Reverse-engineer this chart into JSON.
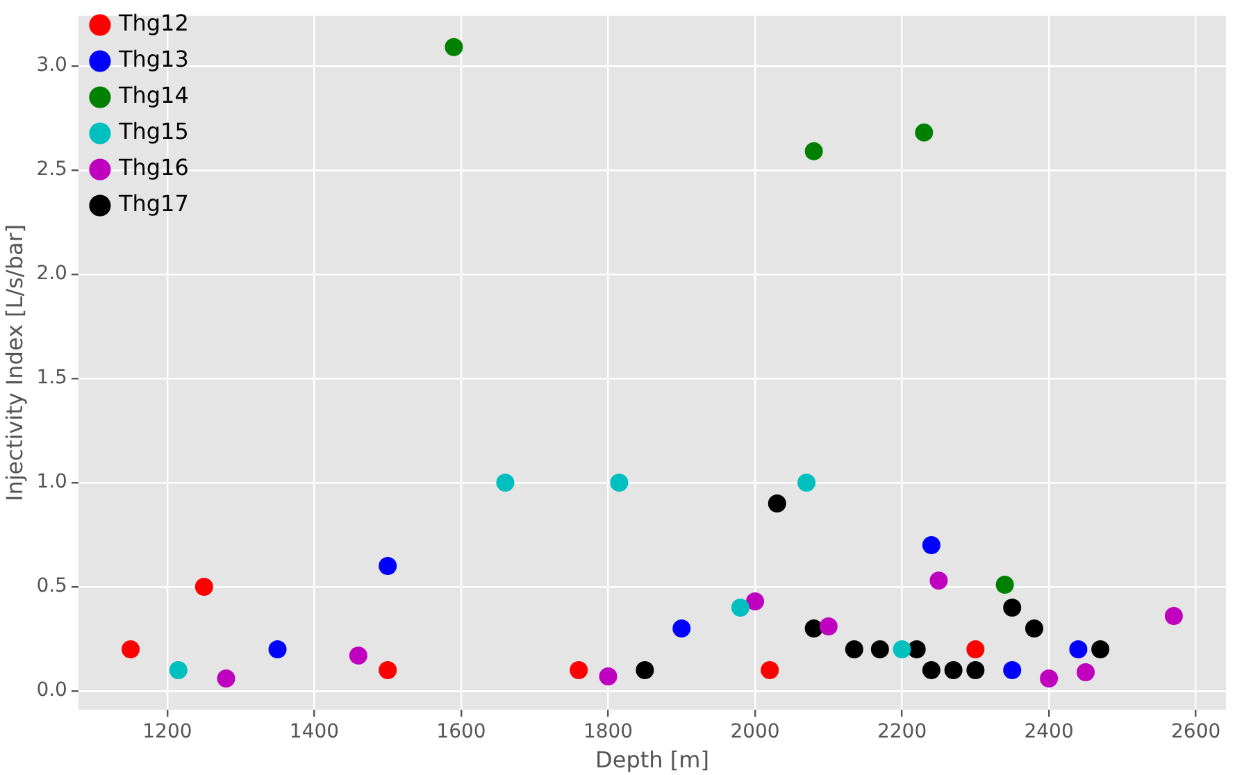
{
  "chart_data": {
    "type": "scatter",
    "xlabel": "Depth [m]",
    "ylabel": "Injectivity Index [L/s/bar]",
    "xlim": [
      1079,
      2641
    ],
    "xticks": [
      1200,
      1400,
      1600,
      1800,
      2000,
      2200,
      2400,
      2600
    ],
    "ylim": [
      -0.09,
      3.24
    ],
    "yticks": [
      {
        "value": 0,
        "label": "0.0"
      },
      0.5,
      {
        "value": 1,
        "label": "1.0"
      },
      1.5,
      {
        "value": 2,
        "label": "2.0"
      },
      2.5,
      {
        "value": 3,
        "label": "3.0"
      }
    ],
    "grid": true,
    "legend": "top left",
    "marker": "circle",
    "series": [
      {
        "name": "Thg12",
        "color": "#ff0000",
        "x": [
          1150,
          1250,
          1500,
          1760,
          2020,
          2300
        ],
        "values": [
          0.2,
          0.5,
          0.1,
          0.1,
          0.1,
          0.2
        ]
      },
      {
        "name": "Thg13",
        "color": "#0000ff",
        "x": [
          1350,
          1500,
          1900,
          2240,
          2350,
          2440
        ],
        "values": [
          0.2,
          0.6,
          0.3,
          0.7,
          0.1,
          0.2
        ]
      },
      {
        "name": "Thg14",
        "color": "#008000",
        "x": [
          1590,
          2080,
          2230,
          2340
        ],
        "values": [
          3.09,
          2.59,
          2.68,
          0.51
        ]
      },
      {
        "name": "Thg15",
        "color": "#00bfbf",
        "x": [
          1215,
          1660,
          1815,
          1980,
          2070,
          2200
        ],
        "values": [
          0.1,
          1.0,
          1.0,
          0.4,
          1.0,
          0.2
        ]
      },
      {
        "name": "Thg16",
        "color": "#bf00bf",
        "x": [
          1280,
          1460,
          1800,
          2000,
          2100,
          2250,
          2400,
          2450,
          2570
        ],
        "values": [
          0.06,
          0.17,
          0.07,
          0.43,
          0.31,
          0.53,
          0.06,
          0.09,
          0.36
        ]
      },
      {
        "name": "Thg17",
        "color": "#000000",
        "x": [
          1850,
          2030,
          2080,
          2135,
          2170,
          2220,
          2240,
          2270,
          2300,
          2350,
          2380,
          2470
        ],
        "values": [
          0.1,
          0.9,
          0.3,
          0.2,
          0.2,
          0.2,
          0.1,
          0.1,
          0.1,
          0.4,
          0.3,
          0.2
        ]
      }
    ]
  }
}
